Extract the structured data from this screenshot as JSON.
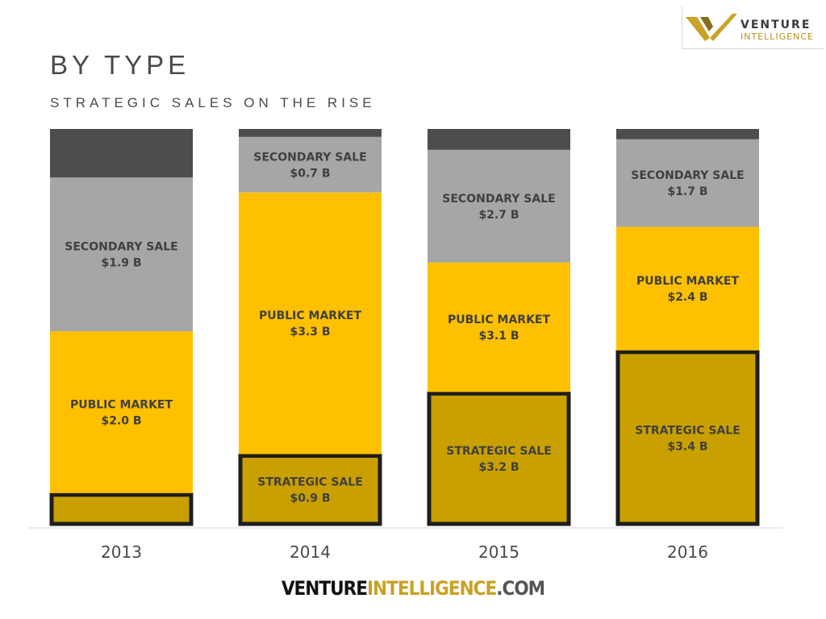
{
  "header": {
    "title": "BY TYPE",
    "subtitle": "STRATEGIC SALES ON THE RISE"
  },
  "logo": {
    "word1": "VENTURE",
    "word2": "INTELLIGENCE"
  },
  "footer": {
    "part1": "VENTURE",
    "part2": "INTELLIGENCE",
    "part3": ".COM"
  },
  "colors": {
    "strategic": "#c9a000",
    "strategic_border": "#1e1e1e",
    "public": "#ffc000",
    "secondary": "#a6a6a6",
    "other": "#4d4d4d",
    "label_text": "#404040",
    "axis_text": "#4a4a4a"
  },
  "chart_data": {
    "type": "bar",
    "stacked": true,
    "normalized": true,
    "categories": [
      "2013",
      "2014",
      "2015",
      "2016"
    ],
    "series": [
      {
        "key": "strategic",
        "values": [
          0.4,
          0.9,
          3.2,
          3.4
        ],
        "labels": [
          "",
          "STRATEGIC SALE\n$0.9 B",
          "STRATEGIC SALE\n$3.2 B",
          "STRATEGIC SALE\n$3.4 B"
        ]
      },
      {
        "key": "public",
        "values": [
          2.0,
          3.3,
          3.1,
          2.4
        ],
        "labels": [
          "PUBLIC  MARKET\n$2.0 B",
          "PUBLIC  MARKET\n$3.3 B",
          "PUBLIC  MARKET\n$3.1 B",
          "PUBLIC  MARKET\n$2.4 B"
        ]
      },
      {
        "key": "secondary",
        "values": [
          1.9,
          0.7,
          2.7,
          1.7
        ],
        "labels": [
          "SECONDARY SALE\n$1.9 B",
          "SECONDARY SALE\n$0.7 B",
          "SECONDARY SALE\n$2.7 B",
          "SECONDARY SALE\n$1.7 B"
        ]
      },
      {
        "key": "other",
        "values": [
          0.6,
          0.1,
          0.5,
          0.2
        ],
        "labels": [
          "",
          "",
          "",
          ""
        ]
      }
    ],
    "legend": "none",
    "grid": false
  }
}
